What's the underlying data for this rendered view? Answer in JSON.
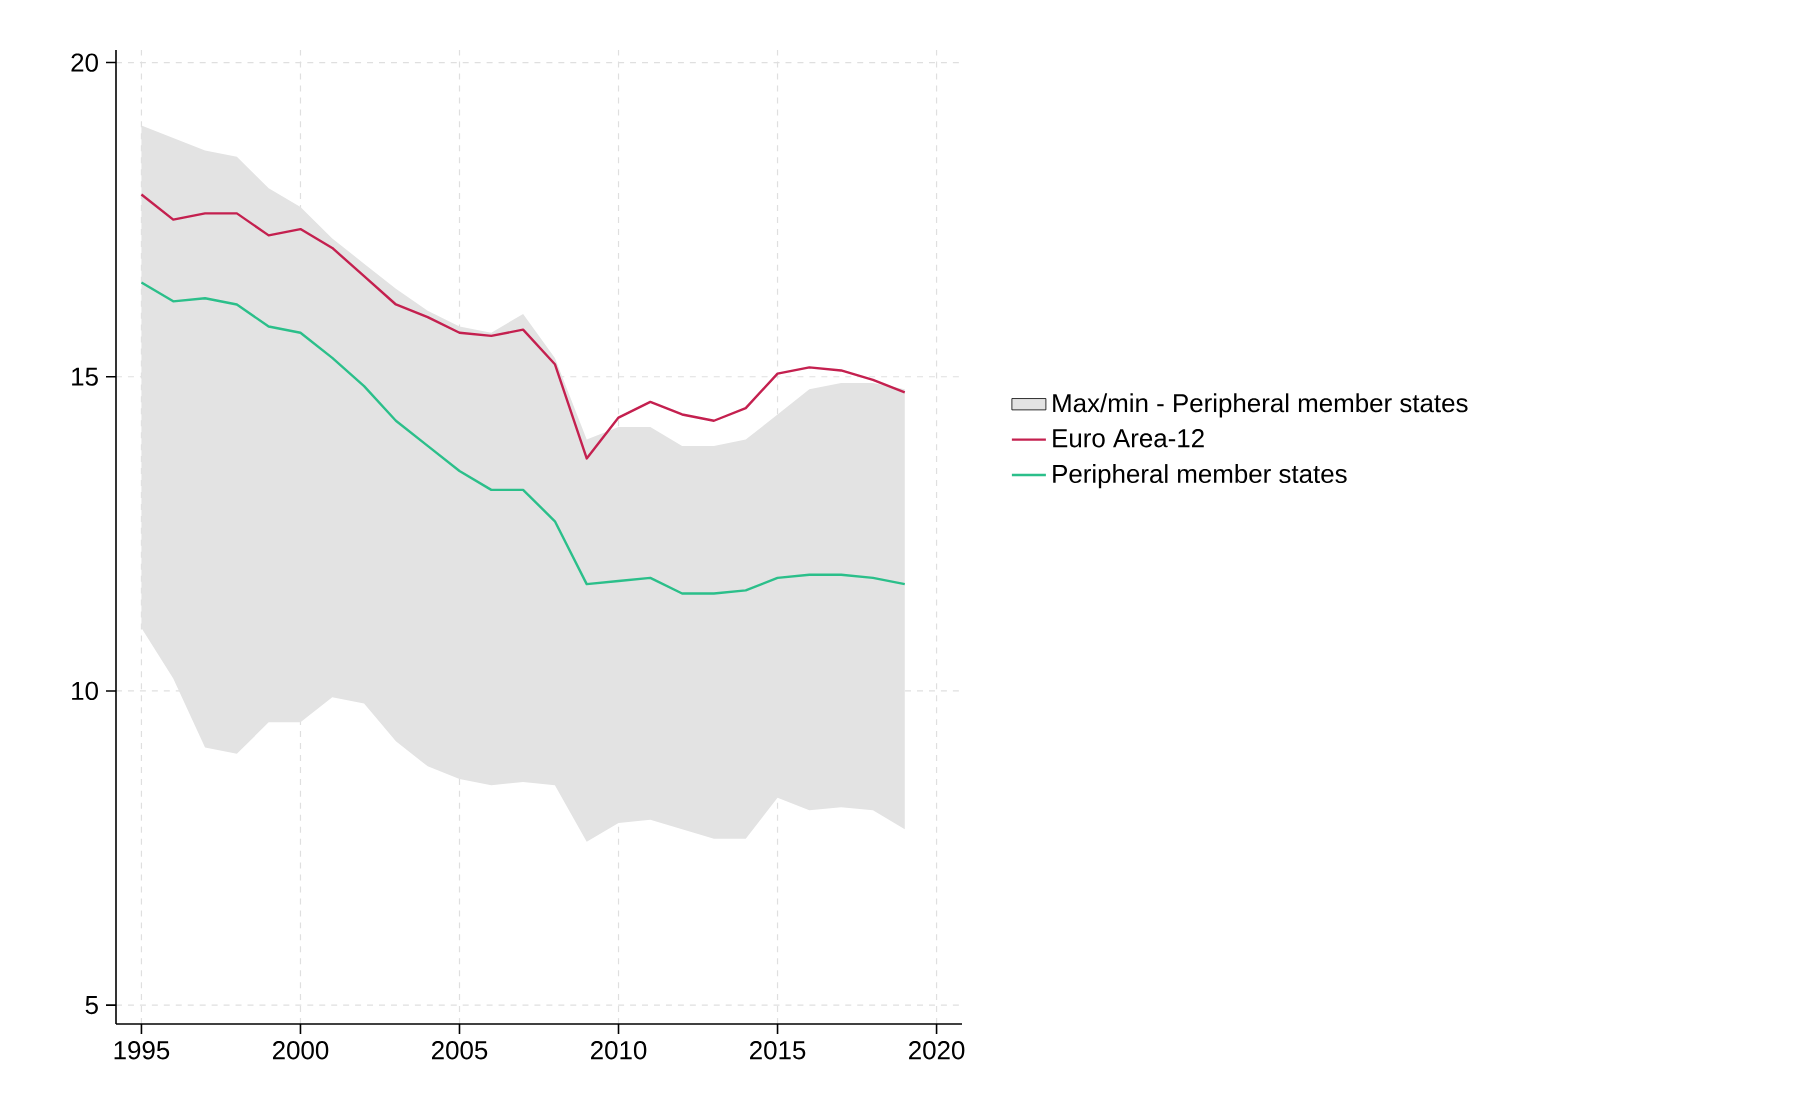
{
  "chart_data": {
    "type": "line",
    "x": [
      1995,
      1996,
      1997,
      1998,
      1999,
      2000,
      2001,
      2002,
      2003,
      2004,
      2005,
      2006,
      2007,
      2008,
      2009,
      2010,
      2011,
      2012,
      2013,
      2014,
      2015,
      2016,
      2017,
      2018,
      2019
    ],
    "series": [
      {
        "name": "Max/min - Peripheral member states",
        "color": "#e3e3e3",
        "values": [
          null,
          null,
          null,
          null,
          null,
          null,
          null,
          null,
          null,
          null,
          null,
          null,
          null,
          null,
          null,
          null,
          null,
          null,
          null,
          null,
          null,
          null,
          null,
          null,
          null
        ],
        "lower": [
          11.0,
          10.2,
          9.1,
          9.0,
          9.5,
          9.5,
          9.9,
          9.8,
          9.2,
          8.8,
          8.6,
          8.5,
          8.55,
          8.5,
          7.6,
          7.9,
          7.95,
          7.8,
          7.65,
          7.65,
          8.3,
          8.1,
          8.15,
          8.1,
          7.8
        ],
        "upper": [
          19.0,
          18.8,
          18.6,
          18.5,
          18.0,
          17.7,
          17.2,
          16.8,
          16.4,
          16.05,
          15.8,
          15.7,
          16.0,
          15.3,
          14.0,
          14.2,
          14.2,
          13.9,
          13.9,
          14.0,
          14.4,
          14.8,
          14.9,
          14.9,
          14.8
        ]
      },
      {
        "name": "Euro Area-12",
        "color": "#c4204f",
        "values": [
          17.9,
          17.5,
          17.6,
          17.6,
          17.25,
          17.35,
          17.05,
          16.6,
          16.15,
          15.95,
          15.7,
          15.65,
          15.75,
          15.2,
          13.7,
          14.35,
          14.6,
          14.4,
          14.3,
          14.5,
          15.05,
          15.15,
          15.1,
          14.95,
          14.75
        ]
      },
      {
        "name": "Peripheral member states",
        "color": "#2bbf8a",
        "values": [
          16.5,
          16.2,
          16.25,
          16.15,
          15.8,
          15.7,
          15.3,
          14.85,
          14.3,
          13.9,
          13.5,
          13.2,
          13.2,
          12.7,
          11.7,
          11.75,
          11.8,
          11.55,
          11.55,
          11.6,
          11.8,
          11.85,
          11.85,
          11.8,
          11.7
        ]
      }
    ],
    "xlim": [
      1994.2,
      2020.8
    ],
    "ylim": [
      4.7,
      20.2
    ],
    "xticks": [
      1995,
      2000,
      2005,
      2010,
      2015,
      2020
    ],
    "yticks": [
      5,
      10,
      15,
      20
    ],
    "grid": true,
    "legend": "right",
    "line_style": "solid",
    "marker": "none"
  }
}
